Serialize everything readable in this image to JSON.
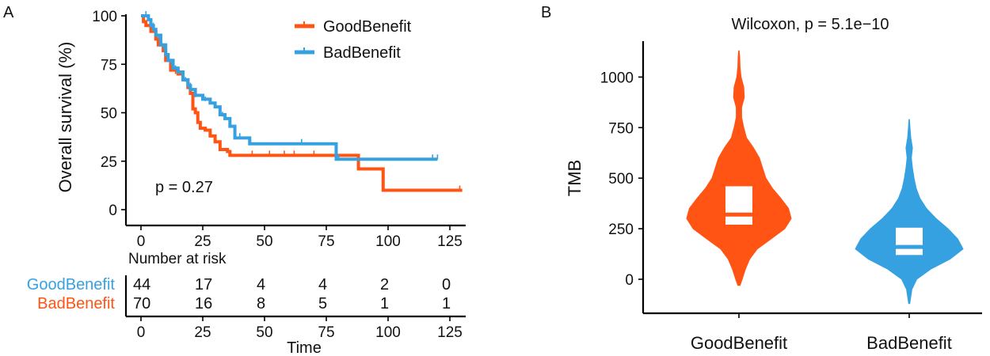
{
  "colors": {
    "good": "#FF5414",
    "bad": "#36A1E0",
    "white": "#FFFFFF"
  },
  "chart_data": [
    {
      "panel": "A",
      "type": "line",
      "subtype": "kaplan-meier",
      "ylabel": "Overall survival (%)",
      "xlabel": "Time",
      "xlim": [
        0,
        130
      ],
      "ylim": [
        0,
        100
      ],
      "xticks": [
        0,
        25,
        50,
        75,
        100,
        125
      ],
      "yticks": [
        0,
        25,
        50,
        75,
        100
      ],
      "annotation": "p = 0.27",
      "legend": [
        "GoodBenefit",
        "BadBenefit"
      ],
      "legend_position": "top-right",
      "series": [
        {
          "name": "GoodBenefit",
          "color": "#FF5414",
          "steps": [
            [
              0,
              100
            ],
            [
              1,
              97
            ],
            [
              2,
              95
            ],
            [
              4,
              92
            ],
            [
              6,
              88
            ],
            [
              7,
              85
            ],
            [
              9,
              82
            ],
            [
              10,
              77
            ],
            [
              12,
              72
            ],
            [
              15,
              70
            ],
            [
              17,
              67
            ],
            [
              19,
              63
            ],
            [
              20,
              60
            ],
            [
              21,
              52
            ],
            [
              22,
              50
            ],
            [
              23,
              45
            ],
            [
              24,
              42
            ],
            [
              26,
              41
            ],
            [
              28,
              38
            ],
            [
              30,
              35
            ],
            [
              32,
              31
            ],
            [
              35,
              30
            ],
            [
              36,
              28
            ],
            [
              60,
              28
            ],
            [
              88,
              28
            ],
            [
              88,
              21
            ],
            [
              98,
              21
            ],
            [
              98,
              10
            ],
            [
              130,
              10
            ]
          ],
          "censor": [
            [
              12,
              72
            ],
            [
              14,
              70
            ],
            [
              24,
              43
            ],
            [
              45,
              28
            ],
            [
              52,
              28
            ],
            [
              58,
              28
            ],
            [
              62,
              28
            ],
            [
              70,
              28
            ],
            [
              129,
              10
            ]
          ]
        },
        {
          "name": "BadBenefit",
          "color": "#36A1E0",
          "steps": [
            [
              0,
              100
            ],
            [
              3,
              98
            ],
            [
              4,
              95
            ],
            [
              5,
              93
            ],
            [
              6,
              90
            ],
            [
              8,
              85
            ],
            [
              10,
              80
            ],
            [
              11,
              77
            ],
            [
              13,
              73
            ],
            [
              15,
              71
            ],
            [
              17,
              67
            ],
            [
              19,
              64
            ],
            [
              20,
              62
            ],
            [
              22,
              59
            ],
            [
              25,
              57
            ],
            [
              28,
              55
            ],
            [
              30,
              53
            ],
            [
              32,
              49
            ],
            [
              34,
              47
            ],
            [
              36,
              43
            ],
            [
              38,
              37
            ],
            [
              44,
              37
            ],
            [
              44,
              34
            ],
            [
              54,
              34
            ],
            [
              79,
              34
            ],
            [
              79,
              26
            ],
            [
              120,
              26
            ]
          ],
          "censor": [
            [
              2,
              100
            ],
            [
              5,
              94
            ],
            [
              7,
              88
            ],
            [
              9,
              83
            ],
            [
              12,
              75
            ],
            [
              14,
              72
            ],
            [
              18,
              66
            ],
            [
              20,
              63
            ],
            [
              22,
              58
            ],
            [
              26,
              56
            ],
            [
              30,
              53
            ],
            [
              33,
              48
            ],
            [
              40,
              37
            ],
            [
              65,
              34
            ],
            [
              80,
              26
            ],
            [
              118,
              26
            ],
            [
              120,
              26
            ]
          ]
        }
      ],
      "risk_table": {
        "title": "Number at risk",
        "rows": [
          {
            "label": "GoodBenefit",
            "label_color": "#36A1E0",
            "values": [
              "44",
              "17",
              "4",
              "4",
              "2",
              "0"
            ]
          },
          {
            "label": "BadBenefit",
            "label_color": "#FF5414",
            "values": [
              "70",
              "16",
              "8",
              "5",
              "1",
              "1"
            ]
          }
        ],
        "times": [
          0,
          25,
          50,
          75,
          100,
          125
        ]
      }
    },
    {
      "panel": "B",
      "type": "violin",
      "title": "Wilcoxon, p = 5.1e−10",
      "ylabel": "TMB",
      "ylim": [
        -130,
        1180
      ],
      "yticks": [
        0,
        250,
        500,
        750,
        1000
      ],
      "categories": [
        "GoodBenefit",
        "BadBenefit"
      ],
      "groups": [
        {
          "name": "GoodBenefit",
          "color": "#FF5414",
          "box": {
            "q1": 270,
            "median": 320,
            "q3": 460
          },
          "density": [
            [
              -30,
              0.02
            ],
            [
              0,
              0.06
            ],
            [
              50,
              0.12
            ],
            [
              100,
              0.2
            ],
            [
              150,
              0.34
            ],
            [
              200,
              0.6
            ],
            [
              250,
              0.85
            ],
            [
              300,
              0.97
            ],
            [
              350,
              0.92
            ],
            [
              400,
              0.78
            ],
            [
              450,
              0.62
            ],
            [
              500,
              0.5
            ],
            [
              550,
              0.44
            ],
            [
              600,
              0.38
            ],
            [
              650,
              0.27
            ],
            [
              700,
              0.14
            ],
            [
              750,
              0.09
            ],
            [
              800,
              0.05
            ],
            [
              850,
              0.05
            ],
            [
              900,
              0.1
            ],
            [
              950,
              0.09
            ],
            [
              1000,
              0.04
            ],
            [
              1050,
              0.02
            ],
            [
              1100,
              0.015
            ],
            [
              1130,
              0.005
            ]
          ]
        },
        {
          "name": "BadBenefit",
          "color": "#36A1E0",
          "box": {
            "q1": 120,
            "median": 160,
            "q3": 255
          },
          "density": [
            [
              -120,
              0.01
            ],
            [
              -50,
              0.05
            ],
            [
              0,
              0.14
            ],
            [
              50,
              0.4
            ],
            [
              100,
              0.76
            ],
            [
              150,
              1.0
            ],
            [
              200,
              0.9
            ],
            [
              250,
              0.72
            ],
            [
              300,
              0.5
            ],
            [
              350,
              0.32
            ],
            [
              400,
              0.2
            ],
            [
              450,
              0.13
            ],
            [
              500,
              0.09
            ],
            [
              550,
              0.06
            ],
            [
              600,
              0.04
            ],
            [
              650,
              0.06
            ],
            [
              700,
              0.03
            ],
            [
              750,
              0.015
            ],
            [
              790,
              0.005
            ]
          ]
        }
      ]
    }
  ]
}
